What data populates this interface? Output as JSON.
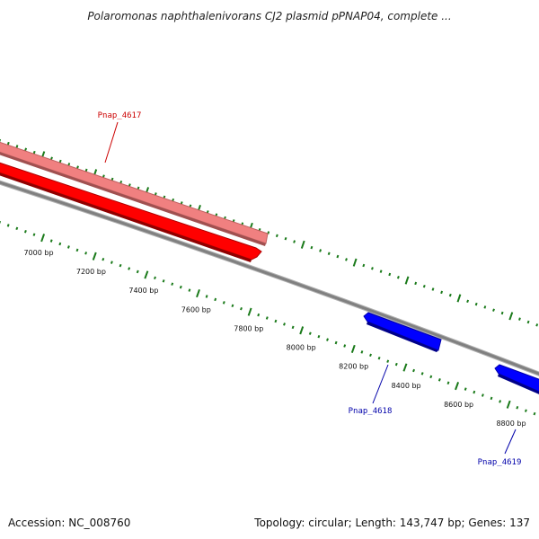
{
  "title": "Polaromonas naphthalenivorans CJ2 plasmid pPNAP04, complete ...",
  "footer": {
    "accession": "Accession: NC_008760",
    "summary": "Topology: circular; Length: 143,747 bp; Genes: 137"
  },
  "colors": {
    "backbone": "#808080",
    "tick": "#1a7a1a",
    "forward_gene": "#f08080",
    "forward_gene_alt": "#ff0000",
    "reverse_gene": "#0000ff",
    "forward_label": "#cc0000",
    "reverse_label": "#0000aa"
  },
  "ticks": {
    "labels": [
      "7000 bp",
      "7200 bp",
      "7400 bp",
      "7600 bp",
      "7800 bp",
      "8000 bp",
      "8200 bp",
      "8400 bp",
      "8600 bp",
      "8800 bp"
    ]
  },
  "genes": [
    {
      "name": "Pnap_4617",
      "strand": "forward"
    },
    {
      "name": "Pnap_4618",
      "strand": "reverse"
    },
    {
      "name": "Pnap_4619",
      "strand": "reverse"
    }
  ]
}
